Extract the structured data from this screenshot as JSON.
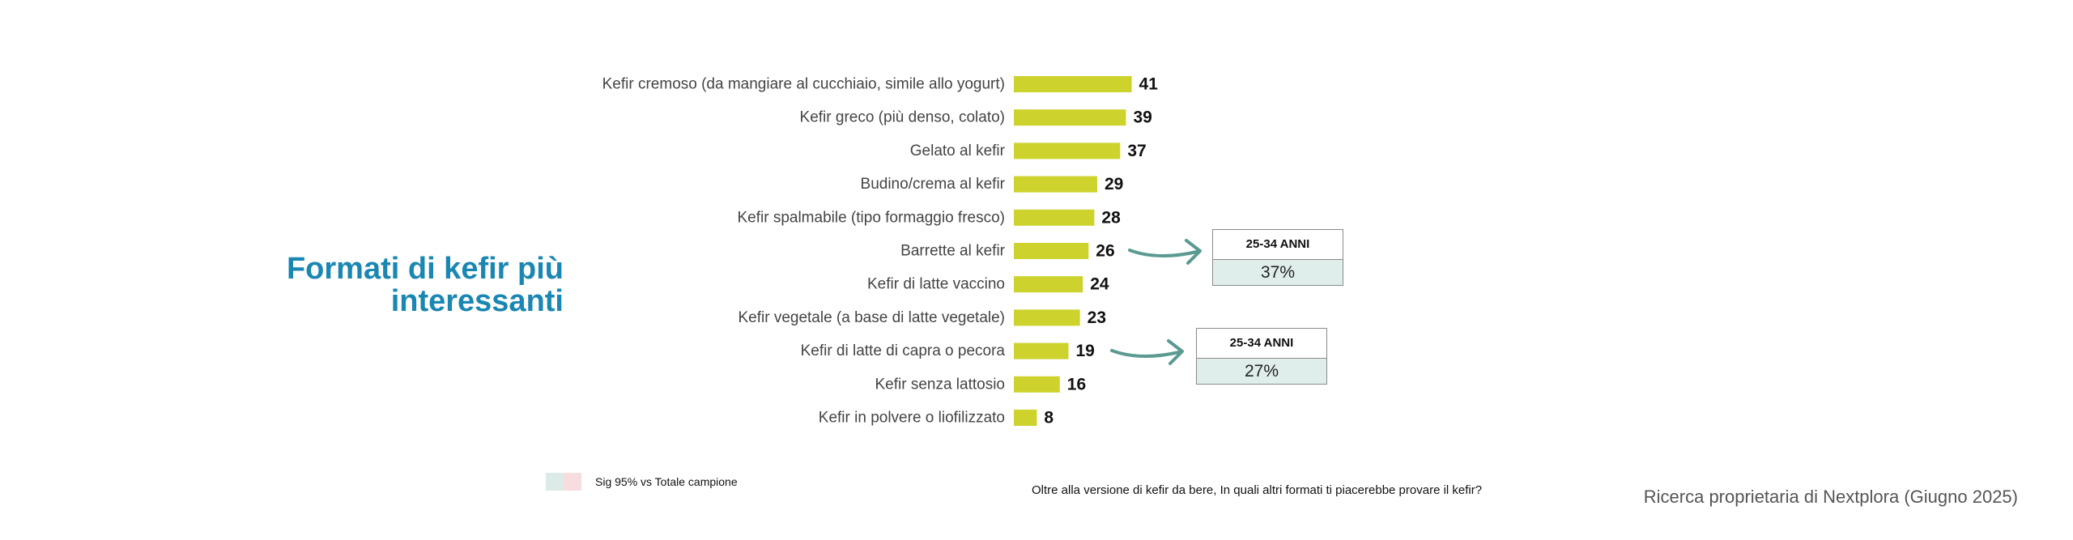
{
  "title": {
    "line1": "Formati di kefir più",
    "line2": "interessanti"
  },
  "chart_data": {
    "type": "bar",
    "orientation": "horizontal",
    "categories": [
      "Kefir cremoso (da mangiare al cucchiaio, simile allo yogurt)",
      "Kefir greco (più denso, colato)",
      "Gelato al kefir",
      "Budino/crema al kefir",
      "Kefir spalmabile (tipo formaggio fresco)",
      "Barrette al kefir",
      "Kefir di latte vaccino",
      "Kefir vegetale (a base di latte vegetale)",
      "Kefir di latte di capra o pecora",
      "Kefir senza lattosio",
      "Kefir in polvere o liofilizzato"
    ],
    "values": [
      41,
      39,
      37,
      29,
      28,
      26,
      24,
      23,
      19,
      16,
      8
    ],
    "bar_color": "#cdd32c",
    "grid": false,
    "title": "",
    "xlabel": "",
    "ylabel": ""
  },
  "callouts": [
    {
      "category": "Barrette al kefir",
      "group": "25-34 ANNI",
      "value": "37%"
    },
    {
      "category": "Kefir di latte di capra o pecora",
      "group": "25-34 ANNI",
      "value": "27%"
    }
  ],
  "legend": {
    "label": "Sig 95% vs Totale campione",
    "colors": [
      "#dcebe8",
      "#f7dde0"
    ]
  },
  "question": "Oltre alla versione di kefir da bere, In quali altri formati ti piacerebbe provare il kefir?",
  "source": "Ricerca proprietaria di Nextplora (Giugno 2025)",
  "colors": {
    "title": "#1a87b3",
    "arrow": "#5b9a90",
    "callout_fill": "#e0eeeb"
  }
}
